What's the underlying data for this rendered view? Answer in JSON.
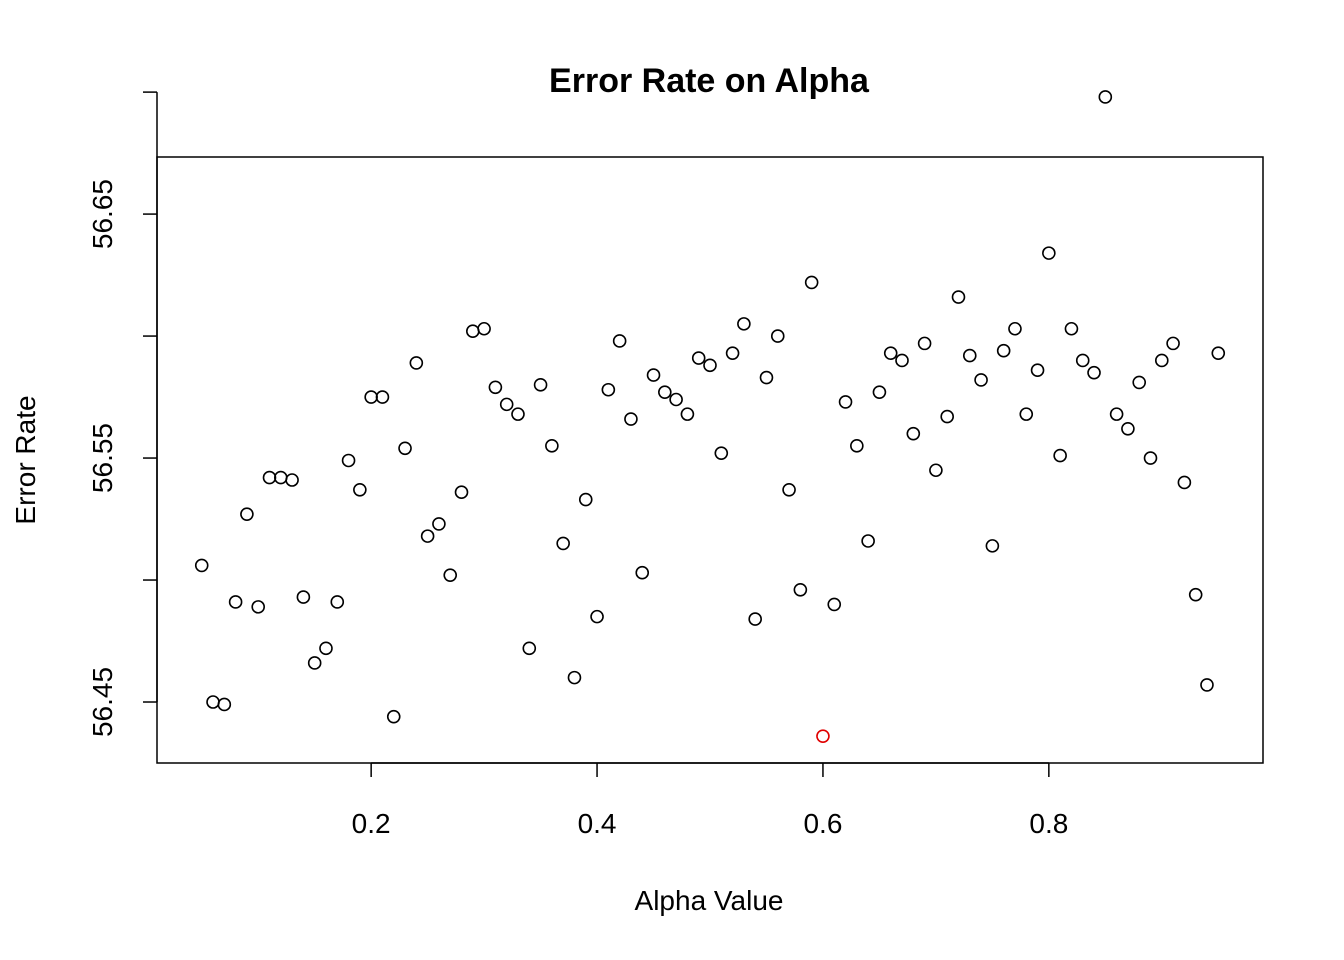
{
  "chart_data": {
    "type": "scatter",
    "title": "Error Rate on Alpha",
    "xlabel": "Alpha Value",
    "ylabel": "Error Rate",
    "xlim": [
      0.0104,
      0.9896
    ],
    "ylim": [
      56.425,
      56.6734
    ],
    "xticks": [
      0.2,
      0.4,
      0.6,
      0.8
    ],
    "xtick_labels": [
      "0.2",
      "0.4",
      "0.6",
      "0.8"
    ],
    "yticks": [
      56.45,
      56.5,
      56.55,
      56.6,
      56.65,
      56.7
    ],
    "ytick_labels": [
      "56.45",
      "",
      "56.55",
      "",
      "56.65",
      ""
    ],
    "grid": false,
    "legend": "none",
    "point_color": "#000000",
    "highlight_color": "#e00000",
    "series": [
      {
        "x": [
          0.05,
          0.06,
          0.07,
          0.08,
          0.09,
          0.1,
          0.11,
          0.12,
          0.13,
          0.14,
          0.15,
          0.16,
          0.17,
          0.18,
          0.19,
          0.2,
          0.21,
          0.22,
          0.23,
          0.24,
          0.25,
          0.26,
          0.27,
          0.28,
          0.29,
          0.3,
          0.31,
          0.32,
          0.33,
          0.34,
          0.35,
          0.36,
          0.37,
          0.38,
          0.39,
          0.4,
          0.41,
          0.42,
          0.43,
          0.44,
          0.45,
          0.46,
          0.47,
          0.48,
          0.49,
          0.5,
          0.51,
          0.52,
          0.53,
          0.54,
          0.55,
          0.56,
          0.57,
          0.58,
          0.59,
          0.61,
          0.62,
          0.63,
          0.64,
          0.65,
          0.66,
          0.67,
          0.68,
          0.69,
          0.7,
          0.71,
          0.72,
          0.73,
          0.74,
          0.75,
          0.76,
          0.77,
          0.78,
          0.79,
          0.8,
          0.81,
          0.82,
          0.83,
          0.84,
          0.85,
          0.86,
          0.87,
          0.88,
          0.89,
          0.9,
          0.91,
          0.92,
          0.93,
          0.94,
          0.95
        ],
        "y": [
          56.506,
          56.45,
          56.449,
          56.491,
          56.527,
          56.489,
          56.542,
          56.542,
          56.541,
          56.493,
          56.466,
          56.472,
          56.491,
          56.549,
          56.537,
          56.575,
          56.575,
          56.444,
          56.554,
          56.589,
          56.518,
          56.523,
          56.502,
          56.536,
          56.602,
          56.603,
          56.579,
          56.572,
          56.568,
          56.472,
          56.58,
          56.555,
          56.515,
          56.46,
          56.533,
          56.485,
          56.578,
          56.598,
          56.566,
          56.503,
          56.584,
          56.577,
          56.574,
          56.568,
          56.591,
          56.588,
          56.552,
          56.593,
          56.605,
          56.484,
          56.583,
          56.6,
          56.537,
          56.496,
          56.622,
          56.49,
          56.573,
          56.555,
          56.516,
          56.577,
          56.593,
          56.59,
          56.56,
          56.597,
          56.545,
          56.567,
          56.616,
          56.592,
          56.582,
          56.514,
          56.594,
          56.603,
          56.568,
          56.586,
          56.634,
          56.551,
          56.603,
          56.59,
          56.585,
          56.698,
          56.568,
          56.562,
          56.581,
          56.55,
          56.59,
          56.597,
          56.54,
          56.494,
          56.457,
          56.593
        ]
      },
      {
        "x": [
          0.6
        ],
        "y": [
          56.436
        ],
        "highlight": true
      }
    ]
  }
}
